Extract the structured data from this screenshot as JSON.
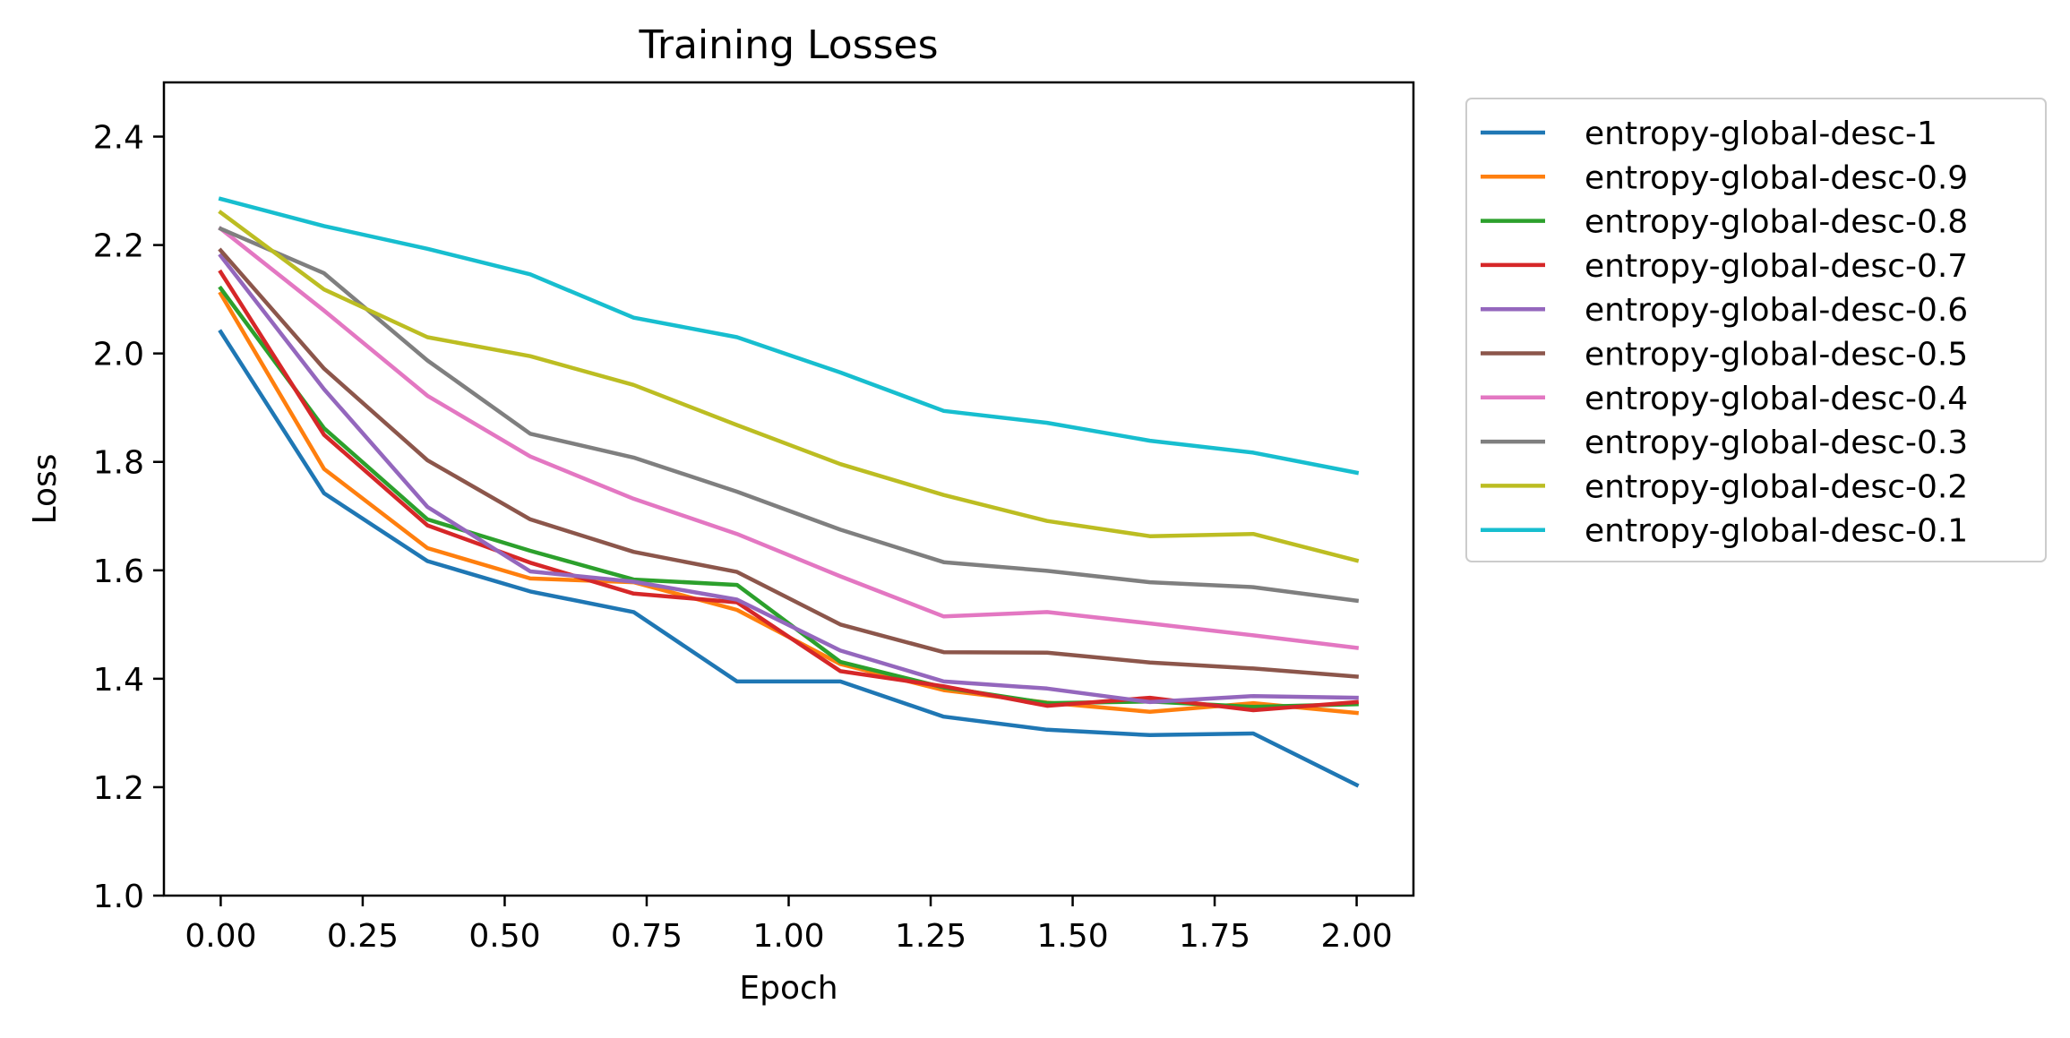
{
  "chart_data": {
    "type": "line",
    "title": "Training Losses",
    "xlabel": "Epoch",
    "ylabel": "Loss",
    "xlim": [
      -0.1,
      2.1
    ],
    "ylim": [
      1.0,
      2.5
    ],
    "xticks": [
      "0.00",
      "0.25",
      "0.50",
      "0.75",
      "1.00",
      "1.25",
      "1.50",
      "1.75",
      "2.00"
    ],
    "yticks": [
      "1.0",
      "1.2",
      "1.4",
      "1.6",
      "1.8",
      "2.0",
      "2.2",
      "2.4"
    ],
    "grid": false,
    "legend_position": "outside-right-top",
    "x": [
      0.0,
      0.182,
      0.364,
      0.545,
      0.727,
      0.909,
      1.091,
      1.273,
      1.455,
      1.636,
      1.818,
      2.0
    ],
    "series": [
      {
        "name": "entropy-global-desc-1",
        "color": "#1f77b4",
        "values": [
          2.04,
          1.742,
          1.617,
          1.561,
          1.523,
          1.395,
          1.395,
          1.33,
          1.306,
          1.296,
          1.299,
          1.204
        ]
      },
      {
        "name": "entropy-global-desc-0.9",
        "color": "#ff7f0e",
        "values": [
          2.11,
          1.787,
          1.641,
          1.585,
          1.578,
          1.527,
          1.427,
          1.379,
          1.356,
          1.339,
          1.355,
          1.337
        ]
      },
      {
        "name": "entropy-global-desc-0.8",
        "color": "#2ca02c",
        "values": [
          2.12,
          1.862,
          1.694,
          1.636,
          1.583,
          1.573,
          1.431,
          1.384,
          1.355,
          1.358,
          1.348,
          1.353
        ]
      },
      {
        "name": "entropy-global-desc-0.7",
        "color": "#d62728",
        "values": [
          2.15,
          1.85,
          1.683,
          1.614,
          1.557,
          1.541,
          1.414,
          1.386,
          1.35,
          1.365,
          1.342,
          1.357
        ]
      },
      {
        "name": "entropy-global-desc-0.6",
        "color": "#9467bd",
        "values": [
          2.18,
          1.934,
          1.717,
          1.598,
          1.579,
          1.546,
          1.452,
          1.395,
          1.382,
          1.357,
          1.368,
          1.365
        ]
      },
      {
        "name": "entropy-global-desc-0.5",
        "color": "#8c564b",
        "values": [
          2.19,
          1.972,
          1.803,
          1.694,
          1.634,
          1.597,
          1.5,
          1.449,
          1.448,
          1.43,
          1.419,
          1.404
        ]
      },
      {
        "name": "entropy-global-desc-0.4",
        "color": "#e377c2",
        "values": [
          2.23,
          2.079,
          1.922,
          1.81,
          1.732,
          1.667,
          1.589,
          1.515,
          1.523,
          1.502,
          1.48,
          1.457
        ]
      },
      {
        "name": "entropy-global-desc-0.3",
        "color": "#7f7f7f",
        "values": [
          2.23,
          2.148,
          1.987,
          1.852,
          1.808,
          1.745,
          1.675,
          1.615,
          1.599,
          1.578,
          1.569,
          1.544
        ]
      },
      {
        "name": "entropy-global-desc-0.2",
        "color": "#bcbd22",
        "values": [
          2.26,
          2.118,
          2.03,
          1.995,
          1.942,
          1.868,
          1.796,
          1.739,
          1.691,
          1.663,
          1.667,
          1.618
        ]
      },
      {
        "name": "entropy-global-desc-0.1",
        "color": "#17becf",
        "values": [
          2.285,
          2.235,
          2.193,
          2.146,
          2.066,
          2.03,
          1.965,
          1.894,
          1.872,
          1.839,
          1.817,
          1.78
        ]
      }
    ]
  }
}
